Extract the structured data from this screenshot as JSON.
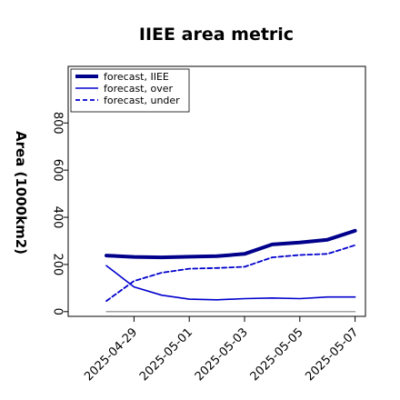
{
  "chart_data": {
    "type": "line",
    "title": "IIEE area metric",
    "xlabel": "",
    "ylabel": "Area (1000km2)",
    "x": [
      "2025-04-28",
      "2025-04-29",
      "2025-04-30",
      "2025-05-01",
      "2025-05-02",
      "2025-05-03",
      "2025-05-04",
      "2025-05-05",
      "2025-05-06",
      "2025-05-07"
    ],
    "x_tick_labels": [
      "2025-04-29",
      "2025-05-01",
      "2025-05-03",
      "2025-05-05",
      "2025-05-07"
    ],
    "x_tick_highlight": "2025-04-29",
    "y_ticks": [
      0,
      200,
      400,
      600,
      800
    ],
    "ylim": [
      -20,
      1040
    ],
    "grid": false,
    "legend_position": "top-left",
    "series": [
      {
        "name": "forecast, IIEE",
        "style": "thick-solid",
        "color": "#00008b",
        "values": [
          238,
          232,
          230,
          233,
          235,
          245,
          285,
          293,
          305,
          343
        ]
      },
      {
        "name": "forecast, over",
        "style": "solid",
        "color": "#0000cd",
        "values": [
          195,
          105,
          70,
          53,
          50,
          55,
          58,
          55,
          62,
          62
        ]
      },
      {
        "name": "forecast, under",
        "style": "dashed",
        "color": "#0000cd",
        "values": [
          45,
          130,
          165,
          182,
          185,
          190,
          230,
          240,
          245,
          282
        ]
      },
      {
        "name": "",
        "style": "thin-solid",
        "color": "#808080",
        "values": [
          0,
          0,
          0,
          0,
          0,
          0,
          0,
          0,
          0,
          0
        ]
      }
    ],
    "colors": {
      "highlight_tick": "#228b22",
      "axis": "#000000"
    }
  }
}
